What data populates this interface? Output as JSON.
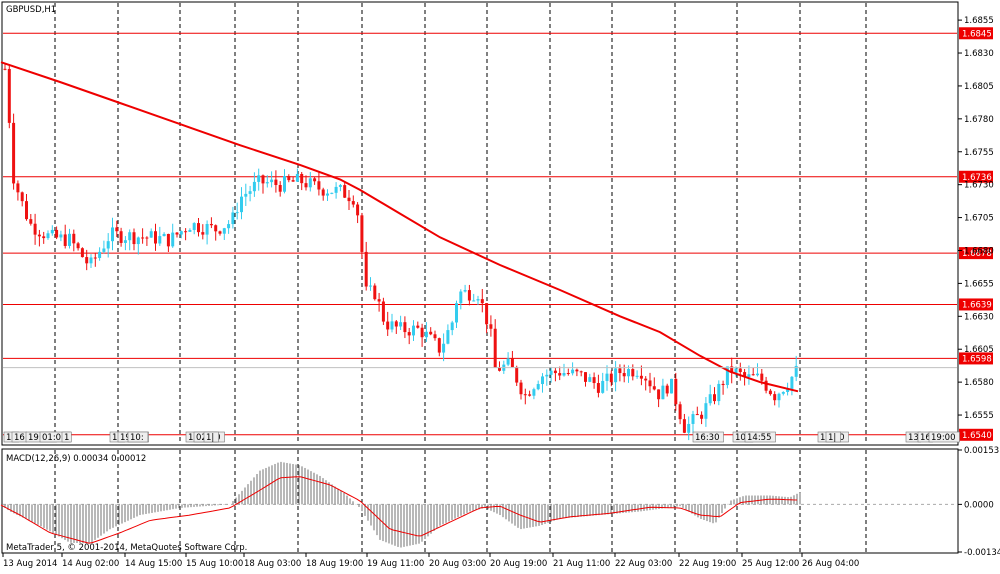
{
  "chart_data": [
    {
      "type": "candlestick",
      "title": "GBPUSD,H1",
      "footer": "MetaTrader 5, © 2001-2014, MetaQuotes Software Corp.",
      "ylim": [
        1.6533,
        1.6868
      ],
      "y_ticks": [
        "1.6855",
        "1.6830",
        "1.6805",
        "1.6780",
        "1.6755",
        "1.6730",
        "1.6705",
        "1.6680",
        "1.6655",
        "1.6630",
        "1.6605",
        "1.6580",
        "1.6555"
      ],
      "x_labels": [
        "13 Aug 2014",
        "14 Aug 02:00",
        "14 Aug 15:00",
        "15 Aug 10:00",
        "18 Aug 03:00",
        "18 Aug 19:00",
        "19 Aug 11:00",
        "20 Aug 03:00",
        "20 Aug 19:00",
        "21 Aug 11:00",
        "22 Aug 03:00",
        "22 Aug 19:00",
        "25 Aug 12:00",
        "26 Aug 04:00"
      ],
      "horizontal_levels": [
        {
          "label": "1.6845",
          "value": 1.6845,
          "color": "#ee0000"
        },
        {
          "label": "1.6736",
          "value": 1.6736,
          "color": "#ee0000"
        },
        {
          "label": "1.6678",
          "value": 1.6678,
          "color": "#ee0000"
        },
        {
          "label": "1.6639",
          "value": 1.6639,
          "color": "#ee0000"
        },
        {
          "label": "1.6598",
          "value": 1.6598,
          "color": "#ee0000"
        },
        {
          "label": "1.6540",
          "value": 1.654,
          "color": "#ee0000"
        }
      ],
      "current_price": 1.6591,
      "moving_average": [
        [
          1,
          1.6823
        ],
        [
          60,
          1.6808
        ],
        [
          120,
          1.6792
        ],
        [
          180,
          1.6776
        ],
        [
          240,
          1.676
        ],
        [
          300,
          1.6745
        ],
        [
          340,
          1.6734
        ],
        [
          360,
          1.6726
        ],
        [
          400,
          1.6708
        ],
        [
          440,
          1.669
        ],
        [
          500,
          1.6669
        ],
        [
          560,
          1.665
        ],
        [
          620,
          1.663
        ],
        [
          660,
          1.6618
        ],
        [
          700,
          1.66
        ],
        [
          730,
          1.6588
        ],
        [
          760,
          1.658
        ],
        [
          798,
          1.6573
        ]
      ],
      "bull_color": "#33ccee",
      "bear_color": "#ee1111",
      "ma_color": "#ee0000",
      "tags": [
        "1|",
        "16",
        "19:00",
        "01:01",
        "1",
        "16",
        "19:00",
        "10:",
        "15:55",
        "02:00",
        "1|",
        "16:30",
        "10:",
        "14:55",
        "10:00",
        "1|",
        "13",
        "16",
        "19:00"
      ]
    },
    {
      "type": "histogram",
      "title": "MACD(12,26,9) 0.00034 0.00012",
      "ylim": [
        -0.00134,
        0.00153
      ],
      "y_ticks": [
        "0.00153",
        "0.0000",
        "-0.00134"
      ],
      "histogram_color": "#888888",
      "signal_color": "#ee0000",
      "level_color": "#aaaaaa",
      "macd_control": [
        [
          1,
          -2e-05
        ],
        [
          10,
          -0.0002
        ],
        [
          40,
          -0.0006
        ],
        [
          70,
          -0.00108
        ],
        [
          90,
          -0.0011
        ],
        [
          110,
          -0.0007
        ],
        [
          140,
          -0.0003
        ],
        [
          180,
          -0.0001
        ],
        [
          230,
          0.0
        ],
        [
          260,
          0.00095
        ],
        [
          280,
          0.0012
        ],
        [
          300,
          0.0011
        ],
        [
          320,
          0.0008
        ],
        [
          345,
          0.0003
        ],
        [
          360,
          -0.0001
        ],
        [
          380,
          -0.001
        ],
        [
          400,
          -0.00122
        ],
        [
          420,
          -0.0011
        ],
        [
          440,
          -0.0006
        ],
        [
          470,
          -0.0002
        ],
        [
          485,
          -0.0001
        ],
        [
          500,
          -0.0003
        ],
        [
          520,
          -0.0007
        ],
        [
          540,
          -0.0006
        ],
        [
          560,
          -0.0004
        ],
        [
          600,
          -0.0003
        ],
        [
          640,
          -0.0002
        ],
        [
          680,
          -5e-05
        ],
        [
          700,
          -0.0004
        ],
        [
          715,
          -0.00055
        ],
        [
          730,
          0.0001
        ],
        [
          745,
          0.00025
        ],
        [
          770,
          0.00025
        ],
        [
          790,
          0.0002
        ],
        [
          800,
          0.00034
        ]
      ],
      "signal_control": [
        [
          1,
          -2e-05
        ],
        [
          20,
          -0.0003
        ],
        [
          50,
          -0.0008
        ],
        [
          90,
          -0.0011
        ],
        [
          120,
          -0.0008
        ],
        [
          150,
          -0.00045
        ],
        [
          190,
          -0.0003
        ],
        [
          230,
          -0.0001
        ],
        [
          260,
          0.0004
        ],
        [
          280,
          0.00075
        ],
        [
          300,
          0.00078
        ],
        [
          330,
          0.00055
        ],
        [
          360,
          0.0001
        ],
        [
          390,
          -0.0007
        ],
        [
          420,
          -0.0009
        ],
        [
          450,
          -0.0005
        ],
        [
          480,
          -0.0001
        ],
        [
          500,
          -5e-05
        ],
        [
          520,
          -0.0003
        ],
        [
          540,
          -0.0005
        ],
        [
          570,
          -0.00035
        ],
        [
          610,
          -0.00025
        ],
        [
          650,
          -8e-05
        ],
        [
          680,
          -0.0001
        ],
        [
          700,
          -0.0003
        ],
        [
          720,
          -0.00035
        ],
        [
          740,
          5e-05
        ],
        [
          770,
          0.00015
        ],
        [
          800,
          0.00012
        ]
      ]
    }
  ]
}
